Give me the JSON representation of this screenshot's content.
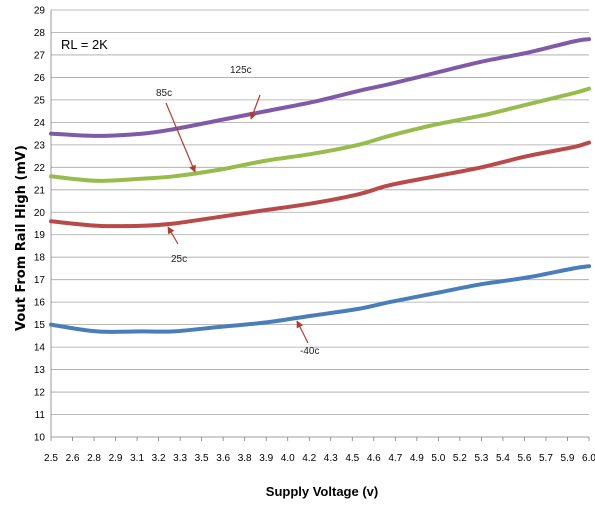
{
  "chart_data": {
    "type": "line",
    "title": "",
    "xlabel": "Supply Voltage (v)",
    "ylabel": "Vout From Rail High (mV)",
    "ylim": [
      10,
      29
    ],
    "xlim": [
      2.5,
      6.0
    ],
    "grid": true,
    "x_tick_labels": [
      "2.5",
      "2.6",
      "2.8",
      "2.9",
      "3.1",
      "3.2",
      "3.3",
      "3.5",
      "3.6",
      "3.8",
      "3.9",
      "4.0",
      "4.2",
      "4.3",
      "4.5",
      "4.6",
      "4.7",
      "4.9",
      "5.0",
      "5.2",
      "5.3",
      "5.4",
      "5.6",
      "5.7",
      "5.9",
      "6.0"
    ],
    "y_tick_labels": [
      "10",
      "11",
      "12",
      "13",
      "14",
      "15",
      "16",
      "17",
      "18",
      "19",
      "20",
      "21",
      "22",
      "23",
      "24",
      "25",
      "26",
      "27",
      "28",
      "29"
    ],
    "x": [
      2.5,
      2.8,
      3.1,
      3.3,
      3.6,
      3.9,
      4.2,
      4.5,
      4.7,
      5.0,
      5.3,
      5.6,
      5.9,
      6.0
    ],
    "series": [
      {
        "name": "125c",
        "color": "#7f5aa6",
        "values": [
          23.5,
          23.4,
          23.5,
          23.7,
          24.1,
          24.5,
          24.9,
          25.4,
          25.7,
          26.2,
          26.7,
          27.1,
          27.6,
          27.7
        ]
      },
      {
        "name": "85c",
        "color": "#98bc4c",
        "values": [
          21.6,
          21.4,
          21.5,
          21.6,
          21.9,
          22.3,
          22.6,
          23.0,
          23.4,
          23.9,
          24.3,
          24.8,
          25.3,
          25.5
        ]
      },
      {
        "name": "25c",
        "color": "#b84a49",
        "values": [
          19.6,
          19.4,
          19.4,
          19.5,
          19.8,
          20.1,
          20.4,
          20.8,
          21.2,
          21.6,
          22.0,
          22.5,
          22.9,
          23.1
        ]
      },
      {
        "name": "-40c",
        "color": "#4a7ebb",
        "values": [
          15.0,
          14.7,
          14.7,
          14.7,
          14.9,
          15.1,
          15.4,
          15.7,
          16.0,
          16.4,
          16.8,
          17.1,
          17.5,
          17.6
        ]
      }
    ],
    "annotations": {
      "rl": "RL = 2K",
      "label_125": "125c",
      "label_85": "85c",
      "label_25": "25c",
      "label_m40": "-40c"
    }
  }
}
